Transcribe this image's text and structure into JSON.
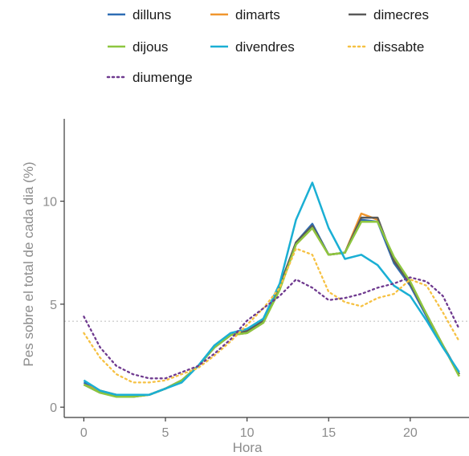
{
  "chart_data": {
    "type": "line",
    "title": "",
    "xlabel": "Hora",
    "ylabel": "Pes sobre el total de cada dia (%)",
    "xlim": [
      -1.2,
      23.6
    ],
    "ylim": [
      -0.5,
      14
    ],
    "x_ticks": [
      0,
      5,
      10,
      15,
      20
    ],
    "y_ticks": [
      0,
      5,
      10
    ],
    "reference_line": 4.17,
    "reference_line_color": "#cfcfcf",
    "grid": false,
    "legend_position": "top",
    "x": [
      0,
      1,
      2,
      3,
      4,
      5,
      6,
      7,
      8,
      9,
      10,
      11,
      12,
      13,
      14,
      15,
      16,
      17,
      18,
      19,
      20,
      21,
      22,
      23
    ],
    "series": [
      {
        "name": "dilluns",
        "color": "#2e6db4",
        "dash": "solid",
        "values": [
          1.2,
          0.8,
          0.6,
          0.6,
          0.6,
          0.9,
          1.3,
          2.0,
          2.9,
          3.5,
          3.6,
          4.1,
          5.8,
          8.0,
          8.9,
          7.4,
          7.5,
          9.1,
          9.0,
          7.0,
          5.9,
          4.4,
          3.0,
          1.6
        ]
      },
      {
        "name": "dimarts",
        "color": "#f0962e",
        "dash": "solid",
        "values": [
          1.1,
          0.8,
          0.6,
          0.6,
          0.6,
          0.9,
          1.3,
          2.0,
          2.9,
          3.5,
          3.6,
          4.1,
          5.8,
          7.9,
          8.7,
          7.4,
          7.5,
          9.4,
          9.1,
          7.2,
          6.0,
          4.5,
          3.0,
          1.5
        ]
      },
      {
        "name": "dimecres",
        "color": "#5a5a5a",
        "dash": "solid",
        "values": [
          1.1,
          0.7,
          0.6,
          0.5,
          0.6,
          0.9,
          1.3,
          2.0,
          2.9,
          3.5,
          3.7,
          4.2,
          5.9,
          8.0,
          8.8,
          7.4,
          7.5,
          9.2,
          9.2,
          7.1,
          6.0,
          4.5,
          3.0,
          1.6
        ]
      },
      {
        "name": "dijous",
        "color": "#8dc63f",
        "dash": "solid",
        "values": [
          1.1,
          0.7,
          0.5,
          0.5,
          0.6,
          0.9,
          1.3,
          2.0,
          2.9,
          3.5,
          3.6,
          4.1,
          5.7,
          7.9,
          8.7,
          7.4,
          7.5,
          9.0,
          9.0,
          7.3,
          6.1,
          4.5,
          3.0,
          1.5
        ]
      },
      {
        "name": "divendres",
        "color": "#1aafd4",
        "dash": "solid",
        "values": [
          1.3,
          0.8,
          0.6,
          0.6,
          0.6,
          0.9,
          1.2,
          2.0,
          3.0,
          3.6,
          3.8,
          4.3,
          6.0,
          9.1,
          10.9,
          8.7,
          7.2,
          7.4,
          6.9,
          5.9,
          5.4,
          4.2,
          2.9,
          1.7
        ]
      },
      {
        "name": "dissabte",
        "color": "#f6c142",
        "dash": "dotted",
        "values": [
          3.6,
          2.4,
          1.6,
          1.2,
          1.2,
          1.3,
          1.6,
          1.9,
          2.5,
          3.2,
          4.0,
          4.8,
          5.8,
          7.7,
          7.4,
          5.6,
          5.1,
          4.9,
          5.3,
          5.5,
          6.2,
          5.9,
          4.6,
          3.2
        ]
      },
      {
        "name": "diumenge",
        "color": "#6f3a8f",
        "dash": "dotted",
        "values": [
          4.4,
          2.9,
          2.0,
          1.6,
          1.4,
          1.4,
          1.7,
          2.0,
          2.6,
          3.3,
          4.2,
          4.8,
          5.4,
          6.2,
          5.8,
          5.2,
          5.3,
          5.5,
          5.8,
          6.0,
          6.3,
          6.1,
          5.4,
          3.8
        ]
      }
    ]
  }
}
